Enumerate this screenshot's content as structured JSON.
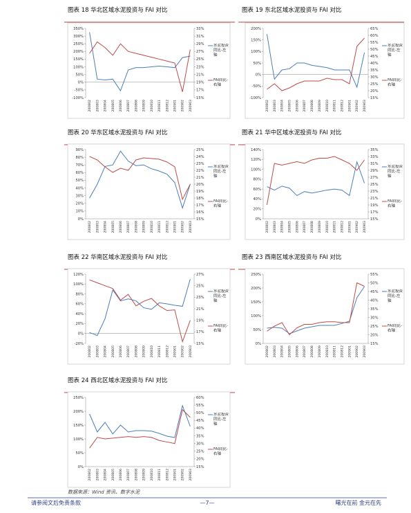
{
  "chart_data": [
    {
      "type": "line",
      "title": "图表 18 华北区域水泥投资与 FAI 对比",
      "categories": [
        "200802",
        "200803",
        "200804",
        "200805",
        "200806",
        "200807",
        "200808",
        "200809",
        "200810",
        "200811",
        "200812",
        "200901",
        "200902",
        "200903"
      ],
      "series": [
        {
          "name": "水泥投资同比-左轴",
          "color": "#4a7ebb",
          "values": [
            325,
            20,
            15,
            20,
            -55,
            80,
            95,
            95,
            100,
            105,
            100,
            95,
            160,
            170
          ]
        },
        {
          "name": "FAI同比-右轴",
          "color": "#be4b48",
          "axis": "y2",
          "values": [
            26.5,
            29.5,
            28,
            26,
            29,
            27,
            26.5,
            26,
            25.5,
            25,
            24.5,
            24,
            16.5,
            27.5
          ]
        }
      ],
      "ylim": [
        -100,
        350
      ],
      "yticks": [
        {
          "value": -100,
          "label": "-100%"
        },
        {
          "value": -50,
          "label": "-50%"
        },
        {
          "value": 0,
          "label": "0%"
        },
        {
          "value": 50,
          "label": "50%"
        },
        {
          "value": 100,
          "label": "100%"
        },
        {
          "value": 150,
          "label": "150%"
        },
        {
          "value": 200,
          "label": "200%"
        },
        {
          "value": 250,
          "label": "250%"
        },
        {
          "value": 300,
          "label": "300%"
        },
        {
          "value": 350,
          "label": "350%"
        }
      ],
      "y2lim": [
        15,
        33
      ],
      "y2ticks": [
        {
          "value": 15,
          "label": "15%"
        },
        {
          "value": 17,
          "label": "17%"
        },
        {
          "value": 19,
          "label": "19%"
        },
        {
          "value": 21,
          "label": "21%"
        },
        {
          "value": 23,
          "label": "23%"
        },
        {
          "value": 25,
          "label": "25%"
        },
        {
          "value": 27,
          "label": "27%"
        },
        {
          "value": 29,
          "label": "29%"
        },
        {
          "value": 31,
          "label": "31%"
        },
        {
          "value": 33,
          "label": "33%"
        }
      ]
    },
    {
      "type": "line",
      "title": "图表 19 东北区域水泥投资与 FAI 对比",
      "categories": [
        "200802",
        "200803",
        "200804",
        "200805",
        "200806",
        "200807",
        "200808",
        "200809",
        "200810",
        "200811",
        "200812",
        "200901",
        "200902",
        "200903"
      ],
      "series": [
        {
          "name": "水泥投资同比-左轴",
          "color": "#4a7ebb",
          "values": [
            175,
            -20,
            20,
            25,
            50,
            50,
            40,
            35,
            30,
            20,
            20,
            20,
            -55,
            95
          ]
        },
        {
          "name": "FAI同比-右轴",
          "color": "#be4b48",
          "axis": "y2",
          "values": [
            21,
            25,
            20,
            22,
            25,
            27,
            27,
            27,
            29,
            28,
            28,
            25,
            52,
            58
          ]
        }
      ],
      "ylim": [
        -100,
        200
      ],
      "yticks": [
        {
          "value": -100,
          "label": "-100%"
        },
        {
          "value": -50,
          "label": "-50%"
        },
        {
          "value": 0,
          "label": "0%"
        },
        {
          "value": 50,
          "label": "50%"
        },
        {
          "value": 100,
          "label": "100%"
        },
        {
          "value": 150,
          "label": "150%"
        },
        {
          "value": 200,
          "label": "200%"
        }
      ],
      "y2lim": [
        15,
        65
      ],
      "y2ticks": [
        {
          "value": 15,
          "label": "15%"
        },
        {
          "value": 20,
          "label": "20%"
        },
        {
          "value": 25,
          "label": "25%"
        },
        {
          "value": 30,
          "label": "30%"
        },
        {
          "value": 35,
          "label": "35%"
        },
        {
          "value": 40,
          "label": "40%"
        },
        {
          "value": 45,
          "label": "45%"
        },
        {
          "value": 50,
          "label": "50%"
        },
        {
          "value": 55,
          "label": "55%"
        },
        {
          "value": 60,
          "label": "60%"
        },
        {
          "value": 65,
          "label": "65%"
        }
      ]
    },
    {
      "type": "line",
      "title": "图表 20 华东区域水泥投资与 FAI 对比",
      "categories": [
        "200802",
        "200803",
        "200804",
        "200805",
        "200806",
        "200807",
        "200808",
        "200809",
        "200810",
        "200811",
        "200812",
        "200901",
        "200902",
        "200903"
      ],
      "series": [
        {
          "name": "水泥投资同比-左轴",
          "color": "#4a7ebb",
          "values": [
            27,
            45,
            68,
            70,
            88,
            75,
            69,
            70,
            65,
            62,
            58,
            47,
            14,
            45
          ]
        },
        {
          "name": "FAI同比-右轴",
          "color": "#be4b48",
          "axis": "y2",
          "values": [
            24,
            23.5,
            22.5,
            21.7,
            22.3,
            22,
            23.5,
            23.8,
            23.7,
            23.6,
            23.2,
            22.5,
            17.8,
            20
          ]
        }
      ],
      "ylim": [
        0,
        90
      ],
      "yticks": [
        {
          "value": 0,
          "label": "0%"
        },
        {
          "value": 10,
          "label": "10%"
        },
        {
          "value": 20,
          "label": "20%"
        },
        {
          "value": 30,
          "label": "30%"
        },
        {
          "value": 40,
          "label": "40%"
        },
        {
          "value": 50,
          "label": "50%"
        },
        {
          "value": 60,
          "label": "60%"
        },
        {
          "value": 70,
          "label": "70%"
        },
        {
          "value": 80,
          "label": "80%"
        },
        {
          "value": 90,
          "label": "90%"
        }
      ],
      "y2lim": [
        15,
        25
      ],
      "y2ticks": [
        {
          "value": 15,
          "label": "15%"
        },
        {
          "value": 16,
          "label": "16%"
        },
        {
          "value": 17,
          "label": "17%"
        },
        {
          "value": 18,
          "label": "18%"
        },
        {
          "value": 19,
          "label": "19%"
        },
        {
          "value": 20,
          "label": "20%"
        },
        {
          "value": 21,
          "label": "21%"
        },
        {
          "value": 22,
          "label": "22%"
        },
        {
          "value": 23,
          "label": "23%"
        },
        {
          "value": 24,
          "label": "24%"
        },
        {
          "value": 25,
          "label": "25%"
        }
      ]
    },
    {
      "type": "line",
      "title": "图表 21 华中区域水泥投资与 FAI 对比",
      "categories": [
        "200802",
        "200803",
        "200804",
        "200805",
        "200806",
        "200807",
        "200808",
        "200809",
        "200810",
        "200811",
        "200812",
        "200901",
        "200902",
        "200903"
      ],
      "series": [
        {
          "name": "水泥投资同比-左轴",
          "color": "#4a7ebb",
          "values": [
            65,
            58,
            66,
            62,
            47,
            55,
            52,
            55,
            58,
            60,
            58,
            47,
            115,
            72
          ]
        },
        {
          "name": "FAI同比-右轴",
          "color": "#be4b48",
          "axis": "y2",
          "values": [
            19,
            31,
            30.5,
            31,
            31.5,
            31,
            32,
            32.5,
            32.5,
            33,
            32,
            31,
            29,
            32
          ]
        }
      ],
      "ylim": [
        0,
        140
      ],
      "yticks": [
        {
          "value": 0,
          "label": "0%"
        },
        {
          "value": 20,
          "label": "20%"
        },
        {
          "value": 40,
          "label": "40%"
        },
        {
          "value": 60,
          "label": "60%"
        },
        {
          "value": 80,
          "label": "80%"
        },
        {
          "value": 100,
          "label": "100%"
        },
        {
          "value": 120,
          "label": "120%"
        },
        {
          "value": 140,
          "label": "140%"
        }
      ],
      "y2lim": [
        15,
        35
      ],
      "y2ticks": [
        {
          "value": 15,
          "label": "15%"
        },
        {
          "value": 17,
          "label": "17%"
        },
        {
          "value": 19,
          "label": "19%"
        },
        {
          "value": 21,
          "label": "21%"
        },
        {
          "value": 23,
          "label": "23%"
        },
        {
          "value": 25,
          "label": "25%"
        },
        {
          "value": 27,
          "label": "27%"
        },
        {
          "value": 29,
          "label": "29%"
        },
        {
          "value": 31,
          "label": "31%"
        },
        {
          "value": 33,
          "label": "33%"
        },
        {
          "value": 35,
          "label": "35%"
        }
      ]
    },
    {
      "type": "line",
      "title": "图表 22 华南区域水泥投资与 FAI 对比",
      "categories": [
        "200802",
        "200803",
        "200804",
        "200805",
        "200806",
        "200807",
        "200808",
        "200809",
        "200810",
        "200811",
        "200812",
        "200901",
        "200902",
        "200903"
      ],
      "series": [
        {
          "name": "水泥投资同比-左轴",
          "color": "#4a7ebb",
          "values": [
            2,
            -4,
            30,
            88,
            66,
            70,
            66,
            52,
            49,
            62,
            60,
            57,
            55,
            110
          ]
        },
        {
          "name": "FAI同比-右轴",
          "color": "#be4b48",
          "axis": "y2",
          "values": [
            26,
            25.5,
            25,
            24.5,
            22.5,
            23.5,
            21.5,
            22.3,
            22.8,
            21.5,
            20.7,
            20.8,
            15.3,
            19
          ]
        }
      ],
      "ylim": [
        -20,
        120
      ],
      "yticks": [
        {
          "value": -20,
          "label": "-20%"
        },
        {
          "value": 0,
          "label": "0%"
        },
        {
          "value": 20,
          "label": "20%"
        },
        {
          "value": 40,
          "label": "40%"
        },
        {
          "value": 60,
          "label": "60%"
        },
        {
          "value": 80,
          "label": "80%"
        },
        {
          "value": 100,
          "label": "100%"
        },
        {
          "value": 120,
          "label": "120%"
        }
      ],
      "y2lim": [
        15,
        27
      ],
      "y2ticks": [
        {
          "value": 15,
          "label": "15%"
        },
        {
          "value": 17,
          "label": "17%"
        },
        {
          "value": 19,
          "label": "19%"
        },
        {
          "value": 21,
          "label": "21%"
        },
        {
          "value": 23,
          "label": "23%"
        },
        {
          "value": 25,
          "label": "25%"
        },
        {
          "value": 27,
          "label": "27%"
        }
      ]
    },
    {
      "type": "line",
      "title": "图表 23 西南区域水泥投资与 FAI 对比",
      "categories": [
        "200802",
        "200803",
        "200804",
        "200805",
        "200806",
        "200807",
        "200808",
        "200809",
        "200810",
        "200811",
        "200812",
        "200901",
        "200902",
        "200903"
      ],
      "series": [
        {
          "name": "水泥投资同比-左轴",
          "color": "#4a7ebb",
          "values": [
            55,
            58,
            55,
            35,
            45,
            55,
            60,
            65,
            65,
            65,
            72,
            80,
            165,
            205
          ]
        },
        {
          "name": "FAI同比-右轴",
          "color": "#be4b48",
          "axis": "y2",
          "values": [
            22,
            25,
            27,
            20,
            24,
            26,
            26,
            27,
            27.5,
            27.5,
            27,
            27,
            50,
            48
          ]
        }
      ],
      "ylim": [
        0,
        250
      ],
      "yticks": [
        {
          "value": 0,
          "label": "0%"
        },
        {
          "value": 50,
          "label": "50%"
        },
        {
          "value": 100,
          "label": "100%"
        },
        {
          "value": 150,
          "label": "150%"
        },
        {
          "value": 200,
          "label": "200%"
        },
        {
          "value": 250,
          "label": "250%"
        }
      ],
      "y2lim": [
        15,
        55
      ],
      "y2ticks": [
        {
          "value": 15,
          "label": "15%"
        },
        {
          "value": 20,
          "label": "20%"
        },
        {
          "value": 25,
          "label": "25%"
        },
        {
          "value": 30,
          "label": "30%"
        },
        {
          "value": 35,
          "label": "35%"
        },
        {
          "value": 40,
          "label": "40%"
        },
        {
          "value": 45,
          "label": "45%"
        },
        {
          "value": 50,
          "label": "50%"
        },
        {
          "value": 55,
          "label": "55%"
        }
      ]
    },
    {
      "type": "line",
      "title": "图表 24 西北区域水泥投资与 FAI 对比",
      "categories": [
        "200802",
        "200803",
        "200804",
        "200805",
        "200806",
        "200807",
        "200808",
        "200809",
        "200810",
        "200811",
        "200812",
        "200901",
        "200902",
        "200903"
      ],
      "series": [
        {
          "name": "水泥投资同比-左轴",
          "color": "#4a7ebb",
          "values": [
            190,
            125,
            160,
            118,
            150,
            125,
            130,
            130,
            128,
            120,
            110,
            105,
            220,
            145
          ]
        },
        {
          "name": "FAI同比-右轴",
          "color": "#be4b48",
          "axis": "y2",
          "values": [
            27,
            34,
            33,
            33.5,
            34,
            34.5,
            34,
            34.5,
            34,
            32,
            31,
            30,
            52,
            47
          ]
        }
      ],
      "ylim": [
        0,
        250
      ],
      "yticks": [
        {
          "value": 0,
          "label": "0%"
        },
        {
          "value": 50,
          "label": "50%"
        },
        {
          "value": 100,
          "label": "100%"
        },
        {
          "value": 150,
          "label": "150%"
        },
        {
          "value": 200,
          "label": "200%"
        },
        {
          "value": 250,
          "label": "250%"
        }
      ],
      "y2lim": [
        15,
        60
      ],
      "y2ticks": [
        {
          "value": 15,
          "label": "15%"
        },
        {
          "value": 20,
          "label": "20%"
        },
        {
          "value": 25,
          "label": "25%"
        },
        {
          "value": 30,
          "label": "30%"
        },
        {
          "value": 35,
          "label": "35%"
        },
        {
          "value": 40,
          "label": "40%"
        },
        {
          "value": 45,
          "label": "45%"
        },
        {
          "value": 50,
          "label": "50%"
        },
        {
          "value": 55,
          "label": "55%"
        },
        {
          "value": 60,
          "label": "60%"
        }
      ]
    }
  ],
  "source": "数据来源：Wind 资讯、数字水泥",
  "footer": {
    "left": "请参阅文后免责条款",
    "page": "—7—",
    "right": "曙光在前 金元在先"
  }
}
